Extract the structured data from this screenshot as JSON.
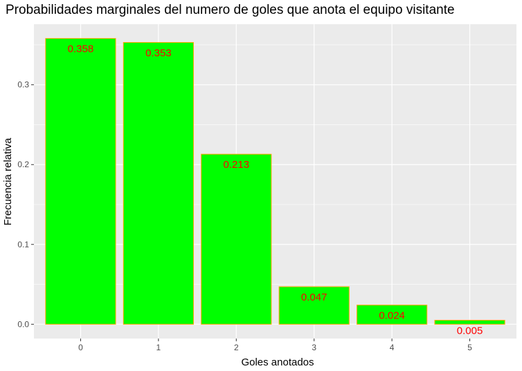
{
  "chart_data": {
    "type": "bar",
    "title": "Probabilidades marginales del numero de goles que anota el equipo visitante",
    "xlabel": "Goles anotados",
    "ylabel": "Frecuencia relativa",
    "categories": [
      "0",
      "1",
      "2",
      "3",
      "4",
      "5"
    ],
    "values": [
      0.358,
      0.353,
      0.213,
      0.047,
      0.024,
      0.005
    ],
    "data_labels": [
      "0.358",
      "0.353",
      "0.213",
      "0.047",
      "0.024",
      "0.005"
    ],
    "y_ticks": [
      0.0,
      0.1,
      0.2,
      0.3
    ],
    "y_tick_labels": [
      "0.0",
      "0.1",
      "0.2",
      "0.3"
    ],
    "ylim": [
      -0.0179,
      0.3759
    ],
    "grid": true,
    "colors": {
      "bar_fill": "#00ff00",
      "bar_outline": "#ffa500",
      "label": "#ff0000",
      "panel_bg": "#ebebeb",
      "grid": "#ffffff"
    }
  }
}
